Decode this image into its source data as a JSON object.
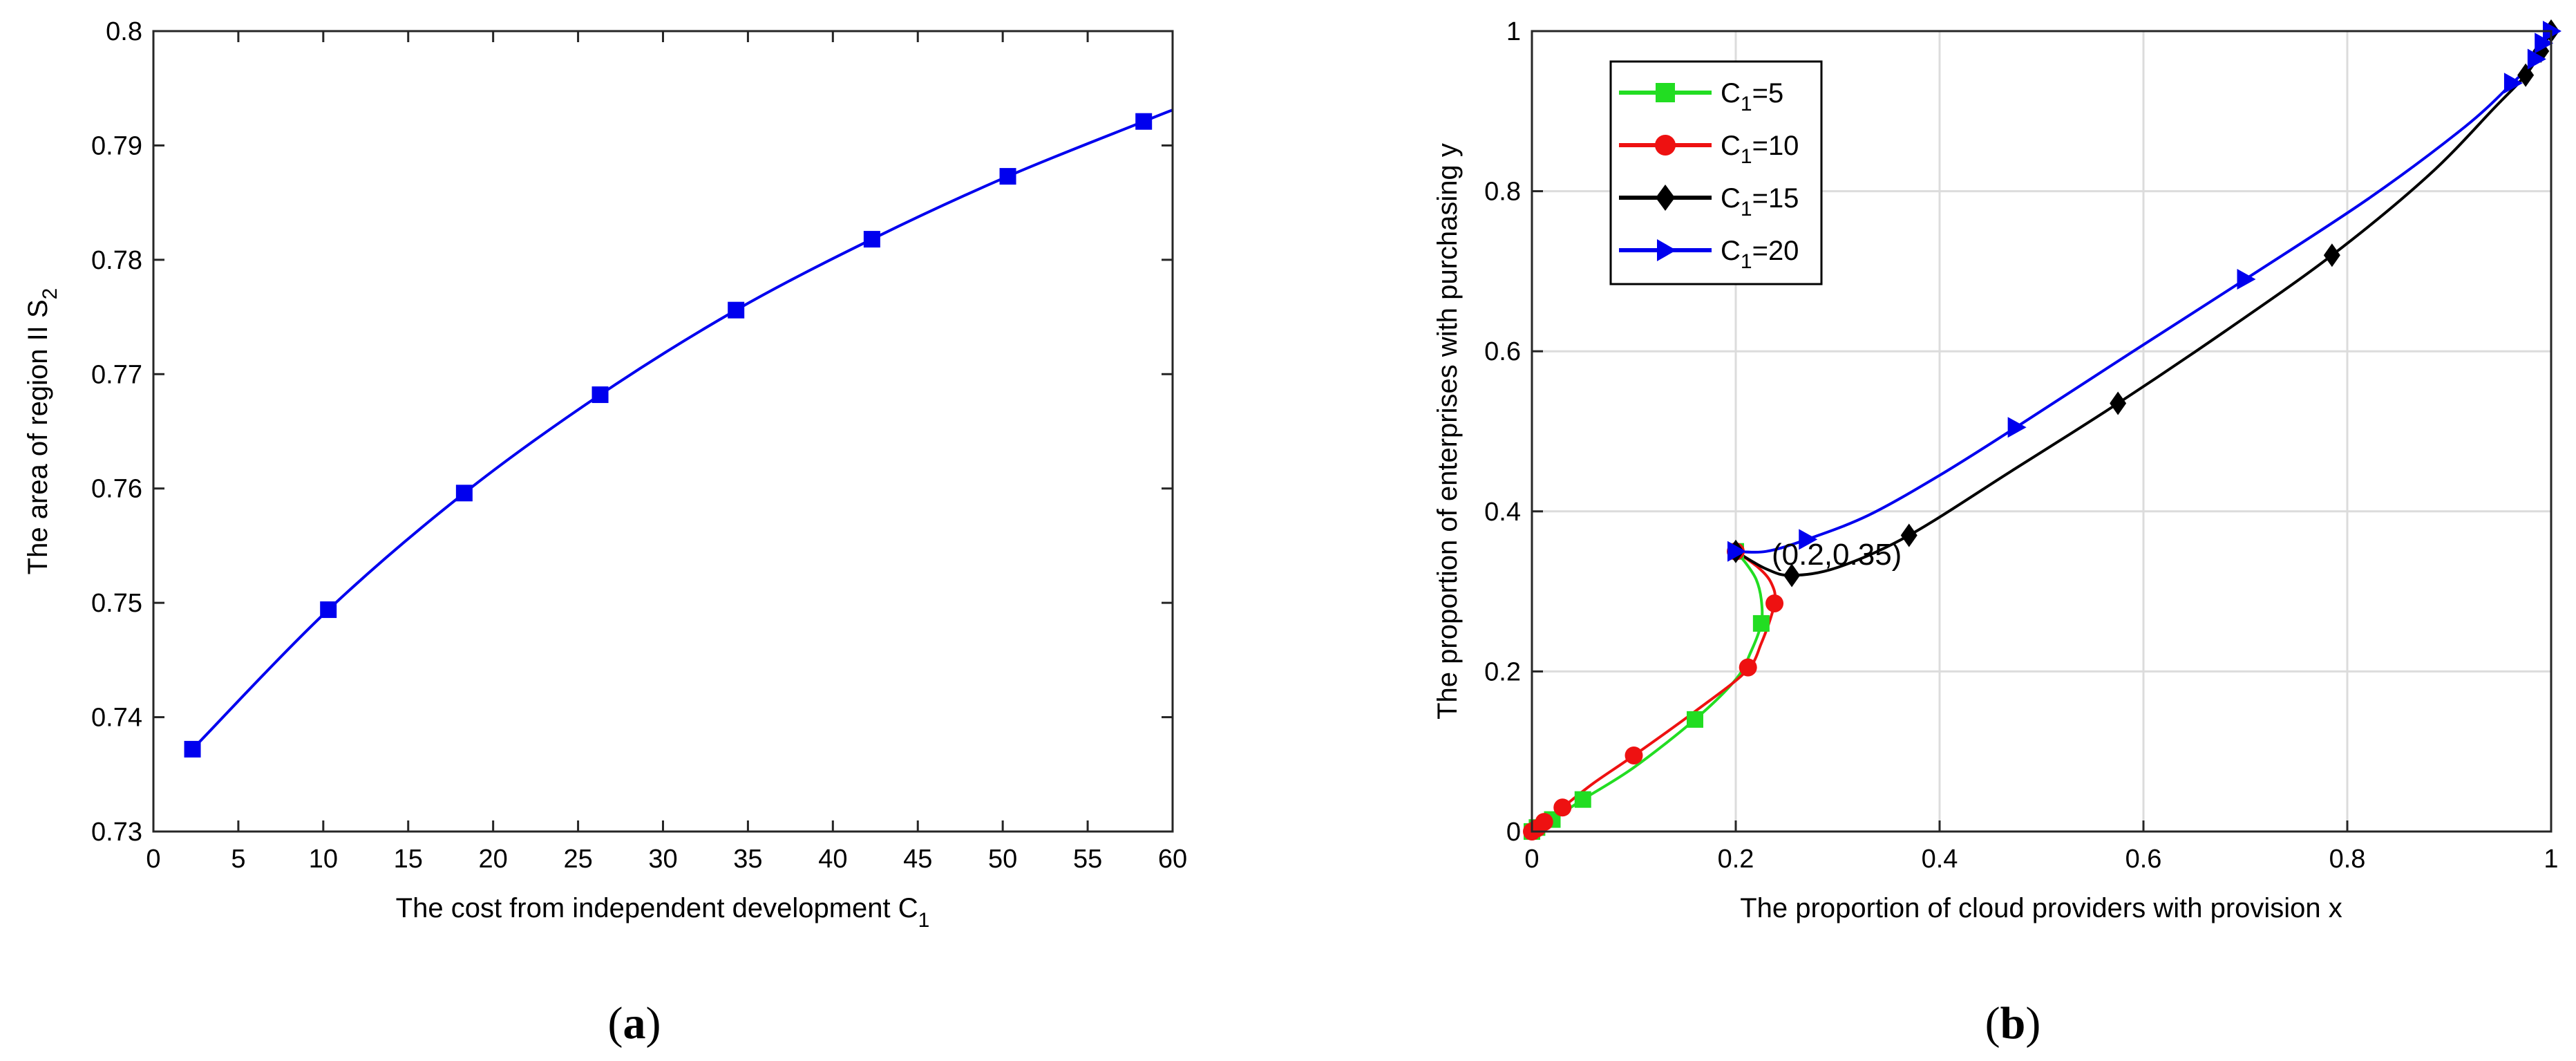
{
  "chart_data": [
    {
      "id": "a",
      "panel_label": {
        "open": "(",
        "letter": "a",
        "close": ")"
      },
      "type": "line",
      "title": "",
      "xlabel": {
        "main": "The cost from independent development C",
        "sub": "1"
      },
      "ylabel": {
        "main": "The area of region II S",
        "sub": "2"
      },
      "xlim": [
        0,
        60
      ],
      "ylim": [
        0.73,
        0.8
      ],
      "xticks": [
        0,
        5,
        10,
        15,
        20,
        25,
        30,
        35,
        40,
        45,
        50,
        55,
        60
      ],
      "yticks": [
        0.73,
        0.74,
        0.75,
        0.76,
        0.77,
        0.78,
        0.79,
        0.8
      ],
      "grid": false,
      "color": "#0000ee",
      "curve": {
        "x": [
          2.3,
          10.3,
          18.3,
          26.3,
          34.3,
          42.3,
          50.3,
          58.3,
          60
        ],
        "y": [
          0.7372,
          0.7494,
          0.7596,
          0.7682,
          0.7756,
          0.7818,
          0.7873,
          0.7921,
          0.7931
        ]
      },
      "markers": {
        "shape": "square",
        "x": [
          2.3,
          10.3,
          18.3,
          26.3,
          34.3,
          42.3,
          50.3,
          58.3
        ],
        "y": [
          0.7372,
          0.7494,
          0.7596,
          0.7682,
          0.7756,
          0.7818,
          0.7873,
          0.7921
        ]
      }
    },
    {
      "id": "b",
      "panel_label": {
        "open": "(",
        "letter": "b",
        "close": ")"
      },
      "type": "line",
      "title": "",
      "xlabel": {
        "main": "The proportion of cloud providers with provision x"
      },
      "ylabel": {
        "main": "The proportion of enterprises with purchasing y"
      },
      "xlim": [
        0,
        1
      ],
      "ylim": [
        0,
        1
      ],
      "xticks": [
        "0",
        "0.2",
        "0.4",
        "0.6",
        "0.8",
        "1"
      ],
      "yticks": [
        "0",
        "0.2",
        "0.4",
        "0.6",
        "0.8",
        "1"
      ],
      "grid": true,
      "legend_position": "top-left",
      "annotation": {
        "text": "(0.2,0.35)",
        "x": 0.2,
        "y": 0.35
      },
      "series": [
        {
          "name": "C1=5",
          "legend_main": "C",
          "legend_sub": "1",
          "legend_tail": "=5",
          "color": "#22dd22",
          "marker": "square",
          "x": [
            0,
            0.005,
            0.02,
            0.05,
            0.1,
            0.16,
            0.2,
            0.215,
            0.225,
            0.225,
            0.22,
            0.21,
            0.2
          ],
          "y": [
            0,
            0.005,
            0.015,
            0.04,
            0.08,
            0.14,
            0.19,
            0.225,
            0.26,
            0.29,
            0.315,
            0.335,
            0.35
          ],
          "mx": [
            0,
            0.005,
            0.02,
            0.05,
            0.16,
            0.225,
            0.2
          ],
          "my": [
            0,
            0.005,
            0.015,
            0.04,
            0.14,
            0.26,
            0.35
          ]
        },
        {
          "name": "C1=10",
          "legend_main": "C",
          "legend_sub": "1",
          "legend_tail": "=10",
          "color": "#ee1111",
          "marker": "circle",
          "x": [
            0,
            0.005,
            0.012,
            0.03,
            0.06,
            0.1,
            0.16,
            0.21,
            0.225,
            0.238,
            0.235,
            0.222,
            0.2
          ],
          "y": [
            0,
            0.004,
            0.012,
            0.03,
            0.06,
            0.095,
            0.15,
            0.2,
            0.235,
            0.285,
            0.31,
            0.33,
            0.35
          ],
          "mx": [
            0,
            0.005,
            0.012,
            0.03,
            0.1,
            0.212,
            0.238,
            0.2
          ],
          "my": [
            0,
            0.004,
            0.012,
            0.03,
            0.095,
            0.205,
            0.285,
            0.35
          ]
        },
        {
          "name": "C1=15",
          "legend_main": "C",
          "legend_sub": "1",
          "legend_tail": "=15",
          "color": "#000000",
          "marker": "diamond",
          "x": [
            0.2,
            0.23,
            0.255,
            0.3,
            0.37,
            0.47,
            0.575,
            0.68,
            0.785,
            0.88,
            0.945,
            0.975,
            0.99,
            1.0
          ],
          "y": [
            0.35,
            0.328,
            0.32,
            0.33,
            0.37,
            0.45,
            0.535,
            0.625,
            0.72,
            0.82,
            0.905,
            0.945,
            0.975,
            1.0
          ],
          "mx": [
            0.2,
            0.255,
            0.37,
            0.575,
            0.785,
            0.975,
            0.99,
            1.0
          ],
          "my": [
            0.35,
            0.32,
            0.37,
            0.535,
            0.72,
            0.945,
            0.975,
            1.0
          ]
        },
        {
          "name": "C1=20",
          "legend_main": "C",
          "legend_sub": "1",
          "legend_tail": "=20",
          "color": "#0000ee",
          "marker": "triangle-right",
          "x": [
            0.2,
            0.23,
            0.27,
            0.33,
            0.4,
            0.475,
            0.59,
            0.7,
            0.82,
            0.915,
            0.962,
            0.985,
            0.992,
            1.0
          ],
          "y": [
            0.35,
            0.35,
            0.365,
            0.395,
            0.445,
            0.505,
            0.6,
            0.69,
            0.79,
            0.88,
            0.935,
            0.965,
            0.985,
            1.0
          ],
          "mx": [
            0.2,
            0.27,
            0.475,
            0.7,
            0.962,
            0.985,
            0.992,
            1.0
          ],
          "my": [
            0.35,
            0.365,
            0.505,
            0.69,
            0.935,
            0.965,
            0.985,
            1.0
          ]
        }
      ]
    }
  ]
}
